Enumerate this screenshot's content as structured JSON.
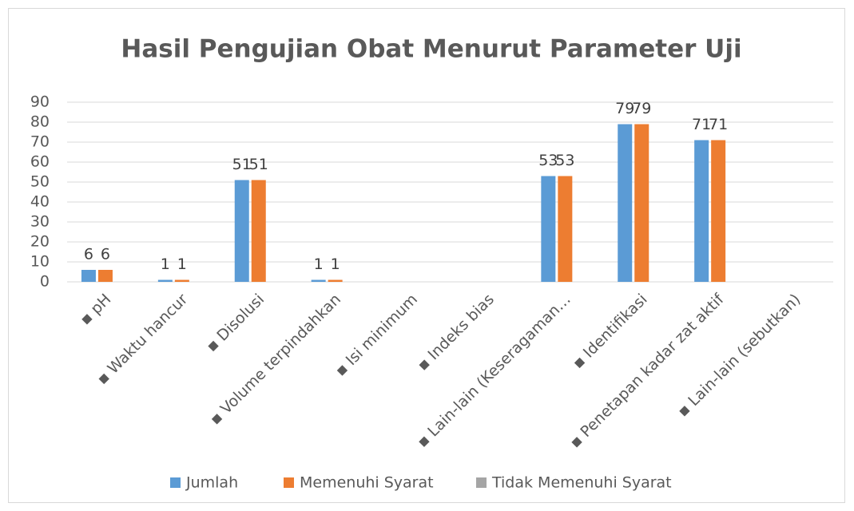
{
  "chart_data": {
    "type": "bar",
    "title": "Hasil Pengujian Obat Menurut Parameter Uji",
    "categories": [
      "▪ pH",
      "▪ Waktu hancur",
      "▪ Disolusi",
      "▪ Volume terpindahkan",
      "▪ Isi minimum",
      "▪ Indeks bias",
      "▪ Lain-lain (Keseragaman…",
      "▪ Identifikasi",
      "▪ Penetapan kadar zat aktif",
      "▪ Lain-lain (sebutkan)"
    ],
    "series": [
      {
        "name": "Jumlah",
        "color": "#5b9bd5",
        "values": [
          6,
          1,
          51,
          1,
          null,
          null,
          53,
          79,
          71,
          null
        ]
      },
      {
        "name": "Memenuhi Syarat",
        "color": "#ed7d31",
        "values": [
          6,
          1,
          51,
          1,
          null,
          null,
          53,
          79,
          71,
          null
        ]
      },
      {
        "name": "Tidak Memenuhi Syarat",
        "color": "#a5a5a5",
        "values": [
          null,
          null,
          null,
          null,
          null,
          null,
          null,
          null,
          null,
          null
        ]
      }
    ],
    "ylim": [
      0,
      90
    ],
    "yticks": [
      0,
      10,
      20,
      30,
      40,
      50,
      60,
      70,
      80,
      90
    ],
    "grid": true,
    "legend": "bottom"
  }
}
